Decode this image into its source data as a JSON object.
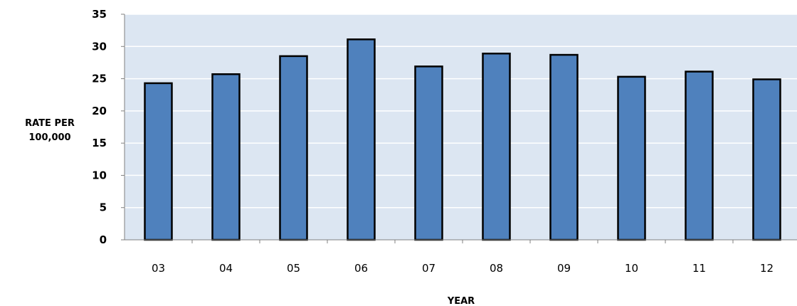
{
  "chart_data": {
    "type": "bar",
    "categories": [
      "03",
      "04",
      "05",
      "06",
      "07",
      "08",
      "09",
      "10",
      "11",
      "12"
    ],
    "values": [
      24.3,
      25.7,
      28.5,
      31.1,
      26.9,
      28.9,
      28.7,
      25.3,
      26.1,
      24.9
    ],
    "title": "",
    "xlabel": "YEAR",
    "ylabel_line1": "RATE PER",
    "ylabel_line2": "100,000",
    "ylim": [
      0,
      35
    ],
    "yticks": [
      "0",
      "5",
      "10",
      "15",
      "20",
      "25",
      "30",
      "35"
    ],
    "grid": true,
    "legend": "none",
    "colors": {
      "bar_fill": "#4f81bd",
      "bar_stroke": "#000000",
      "plot_background": "#dce6f2",
      "gridline": "#ffffff",
      "axis": "#808080"
    }
  }
}
